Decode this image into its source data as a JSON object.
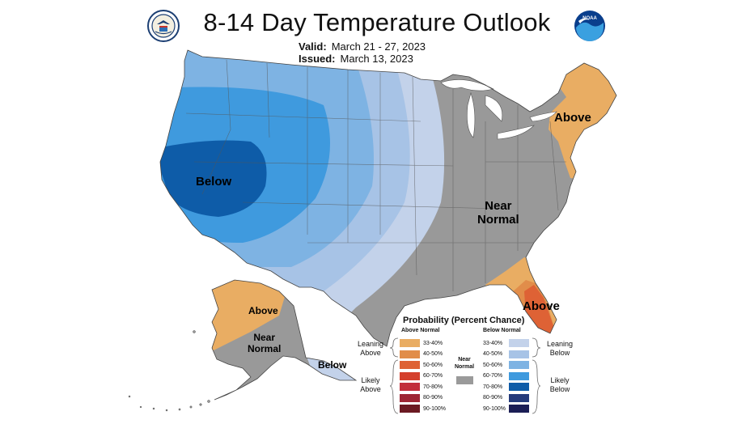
{
  "title": "8-14 Day Temperature Outlook",
  "valid_label": "Valid:",
  "valid_value": "March 21 - 27, 2023",
  "issued_label": "Issued:",
  "issued_value": "March 13, 2023",
  "logos": {
    "left": "doc-seal-icon",
    "right": "noaa-logo-icon"
  },
  "map_labels": {
    "below_west": "Below",
    "above_northeast": "Above",
    "near_normal": [
      "Near",
      "Normal"
    ],
    "above_florida": "Above",
    "above_alaska": "Above",
    "near_normal_alaska": [
      "Near",
      "Normal"
    ],
    "below_alaska": "Below"
  },
  "legend": {
    "heading": "Probability (Percent Chance)",
    "above_header": "Above Normal",
    "below_header": "Below Normal",
    "near_header": [
      "Near",
      "Normal"
    ],
    "leaning_above": [
      "Leaning",
      "Above"
    ],
    "likely_above": [
      "Likely",
      "Above"
    ],
    "leaning_below": [
      "Leaning",
      "Below"
    ],
    "likely_below": [
      "Likely",
      "Below"
    ],
    "above_bins": [
      {
        "label": "33-40%",
        "color": "#e9ad63"
      },
      {
        "label": "40-50%",
        "color": "#e18d4a"
      },
      {
        "label": "50-60%",
        "color": "#de6235"
      },
      {
        "label": "60-70%",
        "color": "#d4402d"
      },
      {
        "label": "70-80%",
        "color": "#c22e3b"
      },
      {
        "label": "80-90%",
        "color": "#9e2634"
      },
      {
        "label": "90-100%",
        "color": "#6b1a22"
      }
    ],
    "below_bins": [
      {
        "label": "33-40%",
        "color": "#c3d2ea"
      },
      {
        "label": "40-50%",
        "color": "#a7c3e6"
      },
      {
        "label": "50-60%",
        "color": "#7eb3e3"
      },
      {
        "label": "60-70%",
        "color": "#3f9ade"
      },
      {
        "label": "70-80%",
        "color": "#0e5ca8"
      },
      {
        "label": "80-90%",
        "color": "#253b7b"
      },
      {
        "label": "90-100%",
        "color": "#1b1e55"
      }
    ],
    "near_color": "#9a9a9a"
  },
  "colors": {
    "near_normal": "#999999",
    "lean_above": "#e9ad63",
    "above_40": "#e18d4a",
    "above_50": "#de6235",
    "lean_below": "#c3d2ea",
    "below_40": "#a7c3e6",
    "below_50": "#7eb3e3",
    "below_60": "#3f9ade",
    "below_70": "#0e5ca8",
    "water": "#ffffff",
    "border": "#555555"
  }
}
